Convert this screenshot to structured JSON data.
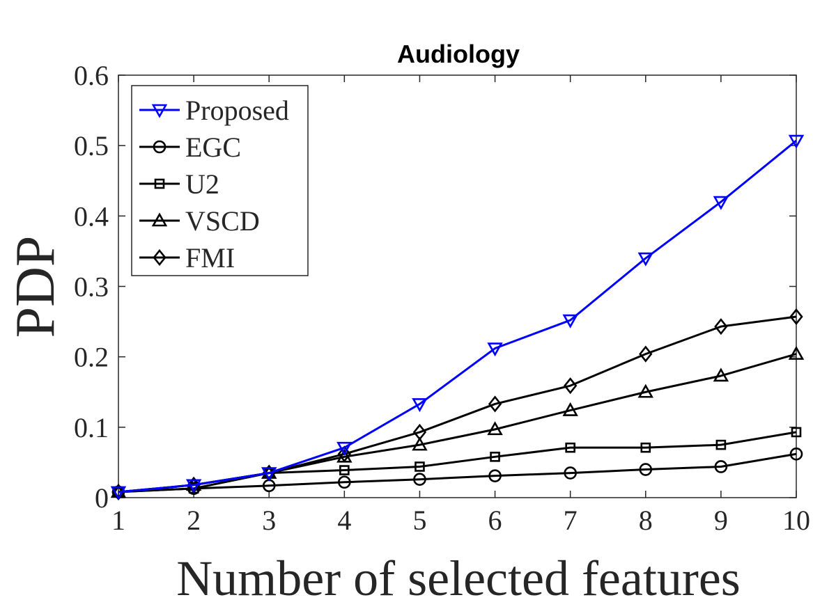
{
  "chart_data": {
    "type": "line",
    "title": "Audiology",
    "xlabel": "Number of selected features",
    "ylabel": "PDP",
    "x": [
      1,
      2,
      3,
      4,
      5,
      6,
      7,
      8,
      9,
      10
    ],
    "xlim": [
      1,
      10
    ],
    "ylim": [
      0,
      0.6
    ],
    "x_ticks": [
      "1",
      "2",
      "3",
      "4",
      "5",
      "6",
      "7",
      "8",
      "9",
      "10"
    ],
    "y_ticks": [
      "0",
      "0.1",
      "0.2",
      "0.3",
      "0.4",
      "0.5",
      "0.6"
    ],
    "grid": false,
    "legend_position": "top-left",
    "series": [
      {
        "name": "Proposed",
        "marker": "triangle-down",
        "color": "#0000ff",
        "values": [
          0.008,
          0.018,
          0.035,
          0.071,
          0.133,
          0.212,
          0.252,
          0.34,
          0.42,
          0.507
        ]
      },
      {
        "name": "EGC",
        "marker": "circle",
        "color": "#000000",
        "values": [
          0.008,
          0.013,
          0.017,
          0.022,
          0.026,
          0.031,
          0.035,
          0.04,
          0.044,
          0.062
        ]
      },
      {
        "name": "U2",
        "marker": "square",
        "color": "#000000",
        "values": [
          0.008,
          0.013,
          0.035,
          0.039,
          0.044,
          0.058,
          0.071,
          0.071,
          0.075,
          0.093
        ]
      },
      {
        "name": "VSCD",
        "marker": "triangle-up",
        "color": "#000000",
        "values": [
          0.008,
          0.018,
          0.035,
          0.058,
          0.075,
          0.097,
          0.124,
          0.15,
          0.173,
          0.204
        ]
      },
      {
        "name": "FMI",
        "marker": "diamond",
        "color": "#000000",
        "values": [
          0.008,
          0.018,
          0.035,
          0.062,
          0.093,
          0.133,
          0.159,
          0.204,
          0.243,
          0.257
        ]
      }
    ]
  }
}
